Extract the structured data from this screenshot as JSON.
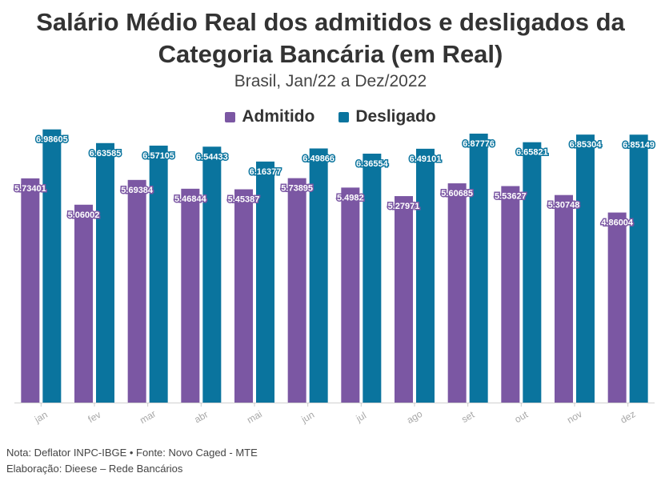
{
  "chart_data": {
    "type": "bar",
    "title": "Salário Médio Real dos admitidos e desligados da Categoria Bancária (em Real)",
    "subtitle": "Brasil, Jan/22 a Dez/2022",
    "categories": [
      "jan",
      "fev",
      "mar",
      "abr",
      "mai",
      "jun",
      "jul",
      "ago",
      "set",
      "out",
      "nov",
      "dez"
    ],
    "series": [
      {
        "name": "Admitido",
        "color": "#7b57a3",
        "values": [
          5.73401,
          5.06002,
          5.69384,
          5.46844,
          5.45387,
          5.73895,
          5.4982,
          5.27971,
          5.60685,
          5.53627,
          5.30748,
          4.86004
        ],
        "labels": [
          "5.73401",
          "5.06002",
          "5.69384",
          "5.46844",
          "5.45387",
          "5.73895",
          "5.4982",
          "5.27971",
          "5.60685",
          "5.53627",
          "5.30748",
          "4.86004"
        ]
      },
      {
        "name": "Desligado",
        "color": "#0a749e",
        "values": [
          6.98605,
          6.63585,
          6.57105,
          6.54433,
          6.16377,
          6.49866,
          6.36554,
          6.49101,
          6.87776,
          6.65821,
          6.85304,
          6.85149
        ],
        "labels": [
          "6.98605",
          "6.63585",
          "6.57105",
          "6.54433",
          "6.16377",
          "6.49866",
          "6.36554",
          "6.49101",
          "6.87776",
          "6.65821",
          "6.85304",
          "6.85149"
        ]
      }
    ],
    "ylim": [
      0,
      7
    ],
    "xlabel": "",
    "ylabel": "",
    "legend_position": "top-center"
  },
  "footer": {
    "note": "Nota: Deflator INPC-IBGE • Fonte: Novo Caged - MTE",
    "credit": "Elaboração: Dieese – Rede Bancários"
  }
}
